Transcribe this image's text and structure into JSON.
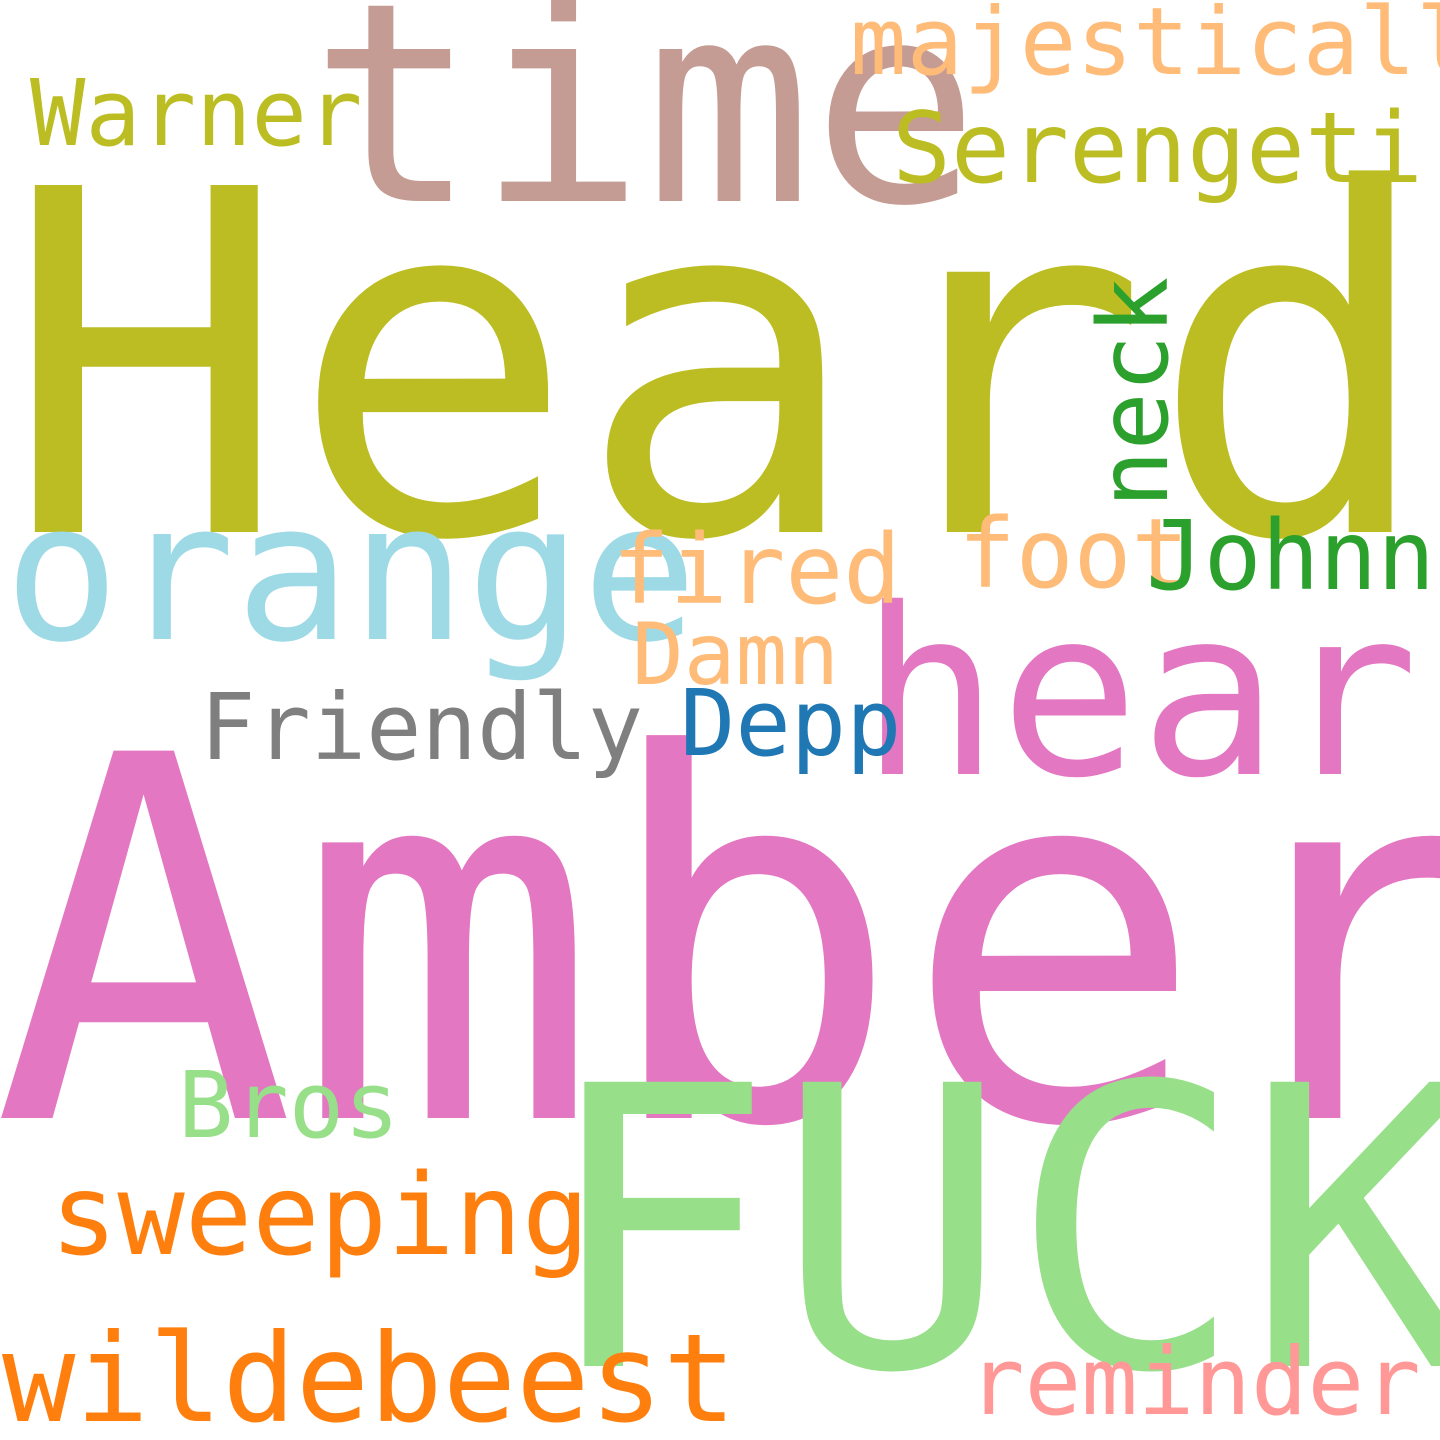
{
  "cloud": {
    "words": {
      "heard": {
        "text": "Heard",
        "color": "#bcbd22"
      },
      "amber": {
        "text": "Amber",
        "color": "#e377c2"
      },
      "fuck": {
        "text": "FUCK",
        "color": "#98df8a"
      },
      "time": {
        "text": "time",
        "color": "#c49c94"
      },
      "hear": {
        "text": "hear",
        "color": "#e377c2"
      },
      "orange": {
        "text": "orange",
        "color": "#9edae5"
      },
      "wildebeest": {
        "text": "wildebeest",
        "color": "#ff7f0e"
      },
      "sweeping": {
        "text": "sweeping",
        "color": "#ff7f0e"
      },
      "majestically": {
        "text": "majestically",
        "color": "#ffbb78"
      },
      "warner": {
        "text": "Warner",
        "color": "#bcbd22"
      },
      "serengeti": {
        "text": "Serengeti",
        "color": "#bcbd22"
      },
      "fired": {
        "text": "fired",
        "color": "#ffbb78"
      },
      "foot": {
        "text": "foot",
        "color": "#ffbb78"
      },
      "johnny": {
        "text": "Johnny",
        "color": "#2ca02c"
      },
      "damn": {
        "text": "Damn",
        "color": "#ffbb78"
      },
      "friendly": {
        "text": "Friendly",
        "color": "#7f7f7f"
      },
      "depp": {
        "text": "Depp",
        "color": "#1f77b4"
      },
      "bros": {
        "text": "Bros",
        "color": "#98df8a"
      },
      "reminder": {
        "text": "reminder",
        "color": "#ff9896"
      },
      "neck": {
        "text": "neck",
        "color": "#2ca02c"
      }
    }
  }
}
